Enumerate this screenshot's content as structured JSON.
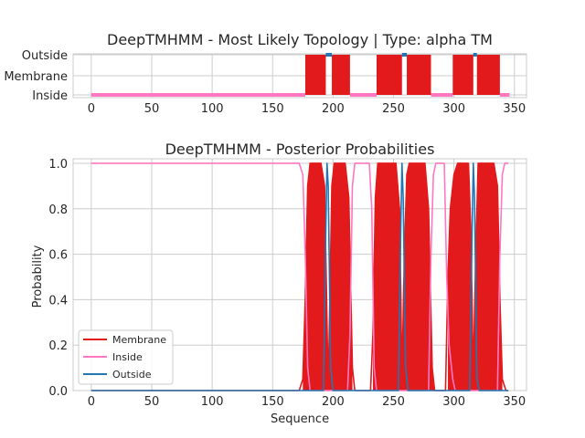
{
  "chart_data": [
    {
      "type": "line",
      "title": "DeepTMHMM - Most Likely Topology | Type: alpha TM",
      "xlabel": "",
      "ylabel": "",
      "xlim": [
        -15,
        360
      ],
      "xticks": [
        0,
        50,
        100,
        150,
        200,
        250,
        300,
        350
      ],
      "y_categories": [
        "Outside",
        "Membrane",
        "Inside"
      ],
      "grid": true,
      "colors": {
        "Inside": "#ff77c0",
        "Membrane": "#e31a1c",
        "Outside": "#1f77b4"
      },
      "segments": [
        {
          "state": "Inside",
          "start": 0,
          "end": 176
        },
        {
          "state": "Membrane",
          "start": 177,
          "end": 193
        },
        {
          "state": "Outside",
          "start": 194,
          "end": 198
        },
        {
          "state": "Membrane",
          "start": 199,
          "end": 213
        },
        {
          "state": "Inside",
          "start": 214,
          "end": 235
        },
        {
          "state": "Membrane",
          "start": 236,
          "end": 256
        },
        {
          "state": "Outside",
          "start": 257,
          "end": 260
        },
        {
          "state": "Membrane",
          "start": 261,
          "end": 280
        },
        {
          "state": "Inside",
          "start": 281,
          "end": 298
        },
        {
          "state": "Membrane",
          "start": 299,
          "end": 315
        },
        {
          "state": "Outside",
          "start": 316,
          "end": 318
        },
        {
          "state": "Membrane",
          "start": 319,
          "end": 337
        },
        {
          "state": "Inside",
          "start": 338,
          "end": 345
        }
      ]
    },
    {
      "type": "line",
      "title": "DeepTMHMM - Posterior Probabilities",
      "xlabel": "Sequence",
      "ylabel": "Probability",
      "xlim": [
        -15,
        360
      ],
      "ylim": [
        0,
        1.02
      ],
      "xticks": [
        0,
        50,
        100,
        150,
        200,
        250,
        300,
        350
      ],
      "yticks": [
        0.0,
        0.2,
        0.4,
        0.6,
        0.8,
        1.0
      ],
      "ytick_labels": [
        "0.0",
        "0.2",
        "0.4",
        "0.6",
        "0.8",
        "1.0"
      ],
      "grid": true,
      "legend_position": "lower-left",
      "series": [
        {
          "name": "Membrane",
          "color": "#e31a1c",
          "points": [
            [
              0,
              0
            ],
            [
              172,
              0
            ],
            [
              175,
              0.05
            ],
            [
              177,
              0.4
            ],
            [
              179,
              0.9
            ],
            [
              181,
              1.0
            ],
            [
              190,
              1.0
            ],
            [
              193,
              0.9
            ],
            [
              195,
              0.3
            ],
            [
              196,
              0.0
            ],
            [
              197,
              0.3
            ],
            [
              199,
              0.9
            ],
            [
              201,
              1.0
            ],
            [
              210,
              1.0
            ],
            [
              213,
              0.85
            ],
            [
              216,
              0.1
            ],
            [
              218,
              0
            ],
            [
              231,
              0
            ],
            [
              233,
              0.25
            ],
            [
              235,
              0.85
            ],
            [
              237,
              1.0
            ],
            [
              252,
              1.0
            ],
            [
              255,
              0.8
            ],
            [
              257,
              0.05
            ],
            [
              259,
              0.6
            ],
            [
              261,
              0.95
            ],
            [
              263,
              1.0
            ],
            [
              276,
              1.0
            ],
            [
              279,
              0.8
            ],
            [
              282,
              0.1
            ],
            [
              284,
              0
            ],
            [
              293,
              0
            ],
            [
              295,
              0.5
            ],
            [
              297,
              0.8
            ],
            [
              300,
              0.95
            ],
            [
              303,
              1.0
            ],
            [
              312,
              1.0
            ],
            [
              314,
              0.7
            ],
            [
              316,
              0.05
            ],
            [
              318,
              0.6
            ],
            [
              320,
              1.0
            ],
            [
              333,
              1.0
            ],
            [
              336,
              0.9
            ],
            [
              338,
              0.4
            ],
            [
              340,
              0.05
            ],
            [
              343,
              0
            ],
            [
              345,
              0
            ]
          ]
        },
        {
          "name": "Inside",
          "color": "#ff77c0",
          "points": [
            [
              0,
              1.0
            ],
            [
              172,
              1.0
            ],
            [
              175,
              0.95
            ],
            [
              177,
              0.6
            ],
            [
              179,
              0.1
            ],
            [
              181,
              0
            ],
            [
              212,
              0
            ],
            [
              214,
              0.25
            ],
            [
              216,
              0.9
            ],
            [
              218,
              1.0
            ],
            [
              230,
              1.0
            ],
            [
              232,
              0.8
            ],
            [
              234,
              0.1
            ],
            [
              236,
              0
            ],
            [
              279,
              0
            ],
            [
              281,
              0.6
            ],
            [
              283,
              0.95
            ],
            [
              285,
              1.0
            ],
            [
              292,
              1.0
            ],
            [
              294,
              0.5
            ],
            [
              296,
              0.2
            ],
            [
              299,
              0.05
            ],
            [
              301,
              0
            ],
            [
              336,
              0
            ],
            [
              338,
              0.6
            ],
            [
              340,
              0.95
            ],
            [
              342,
              1.0
            ],
            [
              345,
              1.0
            ]
          ]
        },
        {
          "name": "Outside",
          "color": "#1f77b4",
          "points": [
            [
              0,
              0
            ],
            [
              192,
              0
            ],
            [
              194,
              0.7
            ],
            [
              195,
              1.0
            ],
            [
              196,
              0.9
            ],
            [
              198,
              0.1
            ],
            [
              200,
              0
            ],
            [
              254,
              0
            ],
            [
              256,
              0.7
            ],
            [
              257,
              1.0
            ],
            [
              258,
              0.85
            ],
            [
              260,
              0.1
            ],
            [
              262,
              0
            ],
            [
              313,
              0
            ],
            [
              315,
              0.7
            ],
            [
              316,
              1.0
            ],
            [
              317,
              0.85
            ],
            [
              319,
              0.05
            ],
            [
              321,
              0
            ],
            [
              345,
              0
            ]
          ]
        }
      ],
      "filled_membrane_regions": [
        [
          177,
          193
        ],
        [
          199,
          213
        ],
        [
          236,
          256
        ],
        [
          261,
          280
        ],
        [
          299,
          315
        ],
        [
          319,
          337
        ]
      ]
    }
  ]
}
